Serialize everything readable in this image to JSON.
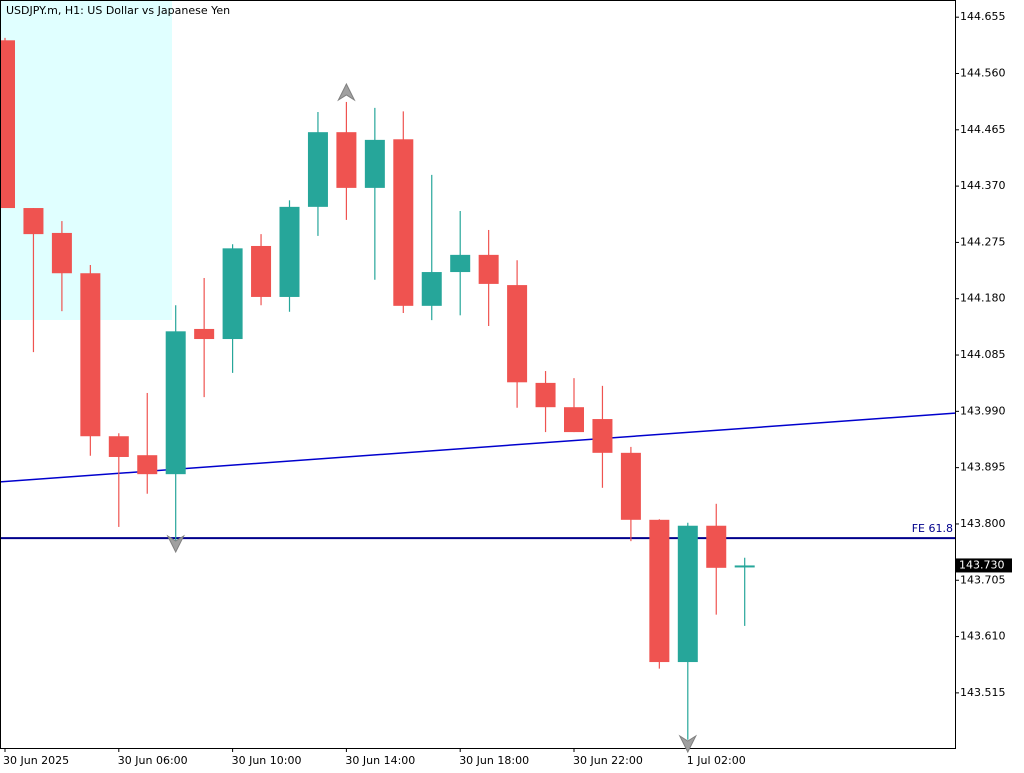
{
  "chart_data": {
    "type": "candlestick",
    "title": "USDJPY.m, H1:  US Dollar vs Japanese Yen",
    "categories": [
      "30 Jun 2025",
      null,
      null,
      null,
      "30 Jun 06:00",
      null,
      null,
      null,
      "30 Jun 10:00",
      null,
      null,
      null,
      "30 Jun 14:00",
      null,
      null,
      null,
      "30 Jun 18:00",
      null,
      null,
      null,
      "30 Jun 22:00",
      null,
      null,
      null,
      "1 Jul 02:00",
      null,
      null
    ],
    "open": [
      144.616,
      144.333,
      144.291,
      144.223,
      143.948,
      143.916,
      143.884,
      144.129,
      144.112,
      144.269,
      144.183,
      144.335,
      144.461,
      144.367,
      144.449,
      144.168,
      144.225,
      144.254,
      144.203,
      144.038,
      143.997,
      143.977,
      143.92,
      143.807,
      143.567,
      143.797,
      143.728
    ],
    "high": [
      144.62,
      144.333,
      144.311,
      144.237,
      143.953,
      144.021,
      144.169,
      144.215,
      144.272,
      144.289,
      144.346,
      144.495,
      144.512,
      144.502,
      144.496,
      144.389,
      144.328,
      144.296,
      144.245,
      144.058,
      144.046,
      144.033,
      143.93,
      143.808,
      143.802,
      143.834,
      143.743
    ],
    "low": [
      144.333,
      144.09,
      144.159,
      143.915,
      143.795,
      143.851,
      143.765,
      144.014,
      144.055,
      144.169,
      144.158,
      144.286,
      144.313,
      144.212,
      144.156,
      144.144,
      144.152,
      144.134,
      143.996,
      143.955,
      143.955,
      143.861,
      143.771,
      143.556,
      143.436,
      143.647,
      143.628
    ],
    "close": [
      144.333,
      144.289,
      144.223,
      143.948,
      143.913,
      143.884,
      144.125,
      144.112,
      144.265,
      144.183,
      144.335,
      144.461,
      144.367,
      144.448,
      144.168,
      144.225,
      144.254,
      144.205,
      144.039,
      143.997,
      143.955,
      143.92,
      143.807,
      143.567,
      143.797,
      143.726,
      143.73
    ],
    "up_color": "#26a69a",
    "down_color": "#ef5350",
    "ylim": [
      143.422,
      144.684
    ],
    "yticks": [
      144.655,
      {
        "value": 144.56,
        "label": "144.560"
      },
      144.465,
      {
        "value": 144.37,
        "label": "144.370"
      },
      144.275,
      {
        "value": 144.18,
        "label": "144.180"
      },
      144.085,
      {
        "value": 143.99,
        "label": "143.990"
      },
      143.895,
      {
        "value": 143.8,
        "label": "143.800"
      },
      143.705,
      {
        "value": 143.61,
        "label": "143.610"
      },
      143.515
    ],
    "trendline": {
      "values": [
        143.871,
        143.987
      ],
      "color": "#0000cd"
    },
    "hline": {
      "value": 143.776,
      "label": "FE 61.8",
      "color": "#00008b"
    },
    "last_price": {
      "value": 143.73,
      "label": "143.730"
    }
  }
}
